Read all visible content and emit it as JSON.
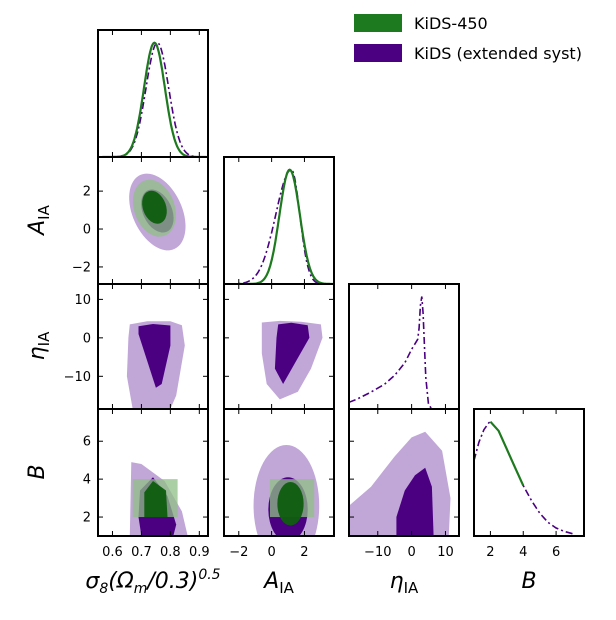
{
  "chart_data": {
    "type": "corner",
    "params": [
      "s8",
      "AIA",
      "eta",
      "B"
    ],
    "labels": {
      "s8": "σ8(Ωm/0.3)^0.5",
      "AIA": "A_IA",
      "eta": "η_IA",
      "B": "B"
    },
    "ranges": {
      "s8": [
        0.55,
        0.93
      ],
      "AIA": [
        -2.9,
        3.8
      ],
      "eta": [
        -18.5,
        14
      ],
      "B": [
        1.0,
        7.7
      ]
    },
    "ticks": {
      "s8": [
        0.6,
        0.7,
        0.8,
        0.9
      ],
      "AIA": [
        -2,
        0,
        2
      ],
      "eta": [
        -10,
        0,
        10
      ],
      "B": [
        2,
        4,
        6
      ]
    },
    "tick_labels": {
      "s8": [
        "0.6",
        "0.7",
        "0.8",
        "0.9"
      ],
      "AIA": [
        "−2",
        "0",
        "2"
      ],
      "eta": [
        "−10",
        "0",
        "10"
      ],
      "B": [
        "2",
        "4",
        "6"
      ]
    },
    "series": [
      {
        "name": "KiDS-450",
        "color": "#1e7a1e",
        "light": "#8fbf85",
        "dark": "#0e5e0e",
        "style": "solid"
      },
      {
        "name": "KiDS (extended syst)",
        "color": "#4b0082",
        "light": "#b696d1",
        "dark": "#4b0082",
        "style": "dashdot"
      }
    ],
    "marginals": {
      "s8": {
        "KiDS-450": {
          "mean": 0.745,
          "sd": 0.036
        },
        "KiDS (extended syst)": {
          "mean": 0.755,
          "sd": 0.039
        }
      },
      "AIA": {
        "KiDS-450": {
          "mean": 1.1,
          "sd": 0.62
        },
        "KiDS (extended syst)": {
          "peak": 1.2,
          "sd_left": 0.95,
          "sd_right": 0.52
        }
      },
      "eta": {
        "KiDS (extended syst)": {
          "x": [
            -18.5,
            -16,
            -12,
            -8,
            -5,
            -2,
            0,
            1,
            1.8,
            2.2,
            2.6,
            3,
            3.4,
            3.8,
            4.2,
            5,
            6
          ],
          "y": [
            0.06,
            0.09,
            0.15,
            0.22,
            0.3,
            0.41,
            0.53,
            0.58,
            0.62,
            0.72,
            0.92,
            1.0,
            0.85,
            0.55,
            0.28,
            0.04,
            0.0
          ]
        }
      },
      "B": {
        "KiDS-450": {
          "x": [
            2.0,
            2.5,
            3.0,
            3.5,
            4.0
          ],
          "y": [
            1.0,
            0.92,
            0.76,
            0.6,
            0.44
          ]
        },
        "KiDS (extended syst)": {
          "x": [
            1.0,
            1.3,
            1.6,
            1.9,
            2.0,
            2.5,
            3.0,
            3.5,
            4.0,
            4.5,
            5.0,
            5.5,
            6.0,
            6.5,
            7.0
          ],
          "y": [
            0.66,
            0.82,
            0.93,
            0.99,
            1.0,
            0.92,
            0.76,
            0.6,
            0.44,
            0.31,
            0.2,
            0.12,
            0.07,
            0.04,
            0.02
          ]
        }
      }
    },
    "contours": {
      "AIA|s8": {
        "KiDS (extended syst)": [
          {
            "level": "95%",
            "cx": 0.755,
            "cy": 0.9,
            "rx": 0.085,
            "ry": 2.15,
            "rot": -25
          },
          {
            "level": "68%",
            "cx": 0.755,
            "cy": 0.95,
            "rx": 0.05,
            "ry": 1.2,
            "rot": -25
          }
        ],
        "KiDS-450": [
          {
            "level": "95%",
            "cx": 0.745,
            "cy": 1.1,
            "rx": 0.07,
            "ry": 1.55,
            "rot": -20
          },
          {
            "level": "68%",
            "cx": 0.745,
            "cy": 1.15,
            "rx": 0.04,
            "ry": 0.9,
            "rot": -20
          }
        ]
      },
      "eta|s8": {
        "KiDS (extended syst)": [
          {
            "level": "95%",
            "polygon": [
              [
                0.66,
                3.5
              ],
              [
                0.72,
                4.3
              ],
              [
                0.8,
                4.3
              ],
              [
                0.84,
                3.3
              ],
              [
                0.85,
                -2
              ],
              [
                0.82,
                -15
              ],
              [
                0.8,
                -18.5
              ],
              [
                0.67,
                -18.5
              ],
              [
                0.65,
                -10
              ],
              [
                0.655,
                0
              ]
            ]
          },
          {
            "level": "68%",
            "polygon": [
              [
                0.69,
                3.0
              ],
              [
                0.74,
                3.6
              ],
              [
                0.8,
                3.2
              ],
              [
                0.8,
                -2
              ],
              [
                0.77,
                -12
              ],
              [
                0.75,
                -13
              ],
              [
                0.72,
                -6
              ],
              [
                0.69,
                1
              ]
            ]
          }
        ]
      },
      "eta|AIA": {
        "KiDS (extended syst)": [
          {
            "level": "95%",
            "polygon": [
              [
                -0.6,
                4.0
              ],
              [
                0.5,
                4.4
              ],
              [
                1.8,
                4.2
              ],
              [
                3.0,
                3.5
              ],
              [
                3.1,
                0
              ],
              [
                2.4,
                -8
              ],
              [
                1.6,
                -14
              ],
              [
                0.5,
                -16
              ],
              [
                -0.3,
                -12
              ],
              [
                -0.6,
                -4
              ]
            ]
          },
          {
            "level": "68%",
            "polygon": [
              [
                0.4,
                3.5
              ],
              [
                1.2,
                3.9
              ],
              [
                2.2,
                3.3
              ],
              [
                2.3,
                0
              ],
              [
                1.5,
                -6
              ],
              [
                0.7,
                -12
              ],
              [
                0.2,
                -8
              ],
              [
                0.3,
                0
              ]
            ]
          }
        ]
      },
      "B|s8": {
        "KiDS (extended syst)": [
          {
            "level": "95%",
            "polygon": [
              [
                0.665,
                4.9
              ],
              [
                0.7,
                4.8
              ],
              [
                0.78,
                3.9
              ],
              [
                0.84,
                2.3
              ],
              [
                0.86,
                1.0
              ],
              [
                0.66,
                1.0
              ]
            ]
          },
          {
            "level": "68%",
            "polygon": [
              [
                0.695,
                3.4
              ],
              [
                0.74,
                4.1
              ],
              [
                0.79,
                3.1
              ],
              [
                0.82,
                1.6
              ],
              [
                0.81,
                1.0
              ],
              [
                0.7,
                1.0
              ],
              [
                0.69,
                2.0
              ]
            ]
          }
        ],
        "KiDS-450": [
          {
            "level": "95%",
            "rect": [
              0.67,
              2.0,
              0.825,
              4.0
            ]
          },
          {
            "level": "68%",
            "polygon": [
              [
                0.71,
                2.0
              ],
              [
                0.71,
                3.3
              ],
              [
                0.74,
                3.9
              ],
              [
                0.785,
                3.4
              ],
              [
                0.79,
                2.0
              ]
            ]
          }
        ]
      },
      "B|AIA": {
        "KiDS (extended syst)": [
          {
            "level": "95%",
            "ellipse": {
              "cx": 0.9,
              "cy": 2.6,
              "rx": 2.0,
              "ry": 3.2
            }
          },
          {
            "level": "68%",
            "ellipse": {
              "cx": 1.0,
              "cy": 2.4,
              "rx": 1.2,
              "ry": 1.7
            }
          }
        ],
        "KiDS-450": [
          {
            "level": "95%",
            "rect": [
              -0.1,
              2.0,
              2.6,
              4.0
            ]
          },
          {
            "level": "68%",
            "ellipse": {
              "cx": 1.15,
              "cy": 2.7,
              "rx": 0.8,
              "ry": 1.15
            }
          }
        ]
      },
      "B|eta": {
        "KiDS (extended syst)": [
          {
            "level": "95%",
            "polygon": [
              [
                -18.5,
                1.0
              ],
              [
                -18.5,
                2.6
              ],
              [
                -12,
                3.6
              ],
              [
                -5,
                5.2
              ],
              [
                0,
                6.2
              ],
              [
                4,
                6.5
              ],
              [
                9,
                5.5
              ],
              [
                11.5,
                3.0
              ],
              [
                11,
                1.0
              ]
            ]
          },
          {
            "level": "68%",
            "polygon": [
              [
                -4.5,
                1.0
              ],
              [
                -4.5,
                2.0
              ],
              [
                -2,
                3.4
              ],
              [
                1,
                4.2
              ],
              [
                4,
                4.6
              ],
              [
                6,
                3.6
              ],
              [
                6.5,
                1.0
              ]
            ]
          }
        ]
      }
    }
  }
}
